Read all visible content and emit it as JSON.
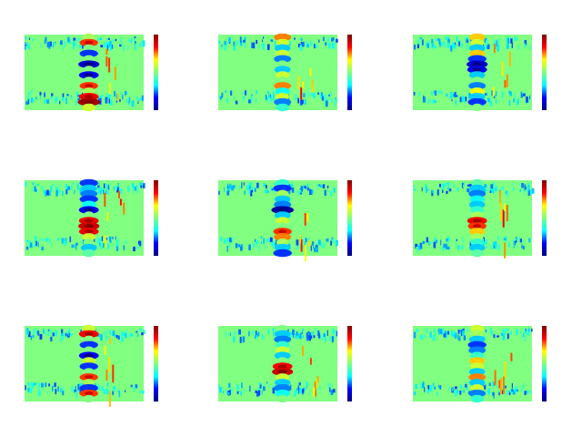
{
  "figure": {
    "background": "#ffffff",
    "colormap": "jet",
    "colormap_stops": [
      "#00007f",
      "#0000ff",
      "#00ffff",
      "#80ff80",
      "#ffff00",
      "#ff0000",
      "#7f0000"
    ]
  },
  "chart_data": [
    {
      "type": "heatmap",
      "background_value": 0.5,
      "colorbar": true,
      "vmin": 0,
      "vmax": 1,
      "grid": false,
      "axes": "off",
      "central_column": [
        0.55,
        0.8,
        0.5,
        0.2,
        0.5,
        0.1,
        0.5,
        0.15,
        0.5,
        0.8,
        0.55,
        0.85,
        0.95,
        0.6
      ]
    },
    {
      "type": "heatmap",
      "background_value": 0.5,
      "colorbar": true,
      "vmin": 0,
      "vmax": 1,
      "grid": false,
      "axes": "off",
      "central_column": [
        0.75,
        0.6,
        0.3,
        0.6,
        0.25,
        0.5,
        0.3,
        0.6,
        0.5,
        0.75,
        0.35,
        0.6,
        0.25,
        0.4
      ]
    },
    {
      "type": "heatmap",
      "background_value": 0.5,
      "colorbar": true,
      "vmin": 0,
      "vmax": 1,
      "grid": false,
      "axes": "off",
      "central_column": [
        0.7,
        0.6,
        0.3,
        0.7,
        0.2,
        0.1,
        0.15,
        0.3,
        0.5,
        0.25,
        0.65,
        0.3,
        0.2,
        0.5
      ]
    },
    {
      "type": "heatmap",
      "background_value": 0.5,
      "colorbar": true,
      "vmin": 0,
      "vmax": 1,
      "grid": false,
      "axes": "off",
      "central_column": [
        0.2,
        0.3,
        0.25,
        0.2,
        0.35,
        0.15,
        0.5,
        0.85,
        0.9,
        0.85,
        0.6,
        0.5,
        0.3,
        0.45
      ]
    },
    {
      "type": "heatmap",
      "background_value": 0.5,
      "colorbar": true,
      "vmin": 0,
      "vmax": 1,
      "grid": false,
      "axes": "off",
      "central_column": [
        0.4,
        0.2,
        0.55,
        0.3,
        0.25,
        0.05,
        0.3,
        0.6,
        0.5,
        0.8,
        0.75,
        0.55,
        0.3,
        0.2
      ]
    },
    {
      "type": "heatmap",
      "background_value": 0.5,
      "colorbar": true,
      "vmin": 0,
      "vmax": 1,
      "grid": false,
      "axes": "off",
      "central_column": [
        0.45,
        0.3,
        0.25,
        0.35,
        0.3,
        0.4,
        0.55,
        0.85,
        0.8,
        0.7,
        0.55,
        0.4,
        0.3,
        0.45
      ]
    },
    {
      "type": "heatmap",
      "background_value": 0.5,
      "colorbar": true,
      "vmin": 0,
      "vmax": 1,
      "grid": false,
      "axes": "off",
      "central_column": [
        0.6,
        0.85,
        0.5,
        0.2,
        0.5,
        0.15,
        0.6,
        0.2,
        0.5,
        0.8,
        0.55,
        0.2,
        0.8,
        0.5
      ]
    },
    {
      "type": "heatmap",
      "background_value": 0.5,
      "colorbar": true,
      "vmin": 0,
      "vmax": 1,
      "grid": false,
      "axes": "off",
      "central_column": [
        0.5,
        0.3,
        0.25,
        0.4,
        0.6,
        0.3,
        0.5,
        0.85,
        0.9,
        0.6,
        0.3,
        0.25,
        0.35,
        0.5
      ]
    },
    {
      "type": "heatmap",
      "background_value": 0.5,
      "colorbar": true,
      "vmin": 0,
      "vmax": 1,
      "grid": false,
      "axes": "off",
      "central_column": [
        0.6,
        0.55,
        0.3,
        0.2,
        0.25,
        0.4,
        0.7,
        0.6,
        0.3,
        0.75,
        0.3,
        0.6,
        0.25,
        0.4
      ]
    }
  ]
}
